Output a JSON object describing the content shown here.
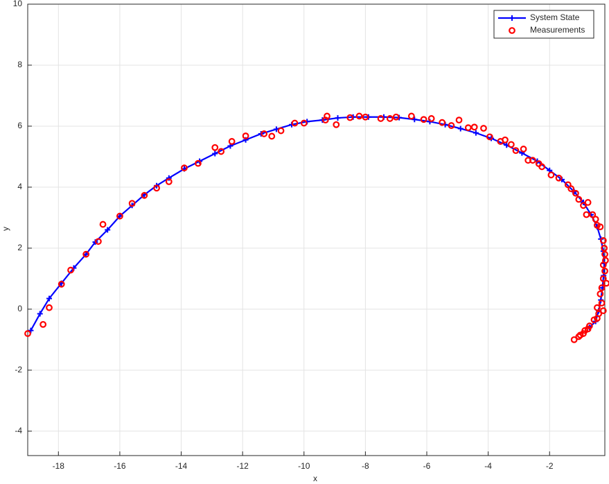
{
  "chart_data": {
    "type": "line",
    "xlabel": "x",
    "ylabel": "y",
    "xlim": [
      -19,
      -0.2
    ],
    "ylim": [
      -4.8,
      10
    ],
    "xticks": [
      -18,
      -16,
      -14,
      -12,
      -10,
      -8,
      -6,
      -4,
      -2
    ],
    "yticks": [
      -4,
      -2,
      0,
      2,
      4,
      6,
      8,
      10
    ],
    "grid": true,
    "legend": "top-right",
    "series": [
      {
        "name": "System State",
        "color": "#0000ff",
        "style": "line-plus",
        "x": [
          -18.9,
          -18.6,
          -18.3,
          -17.9,
          -17.5,
          -17.1,
          -16.8,
          -16.4,
          -16.0,
          -15.6,
          -15.2,
          -14.8,
          -14.4,
          -13.9,
          -13.4,
          -12.9,
          -12.4,
          -11.9,
          -11.4,
          -10.9,
          -10.4,
          -9.9,
          -9.4,
          -8.9,
          -8.4,
          -7.9,
          -7.4,
          -6.9,
          -6.4,
          -5.9,
          -5.4,
          -4.9,
          -4.4,
          -3.9,
          -3.4,
          -2.9,
          -2.4,
          -2.0,
          -1.6,
          -1.2,
          -0.9,
          -0.65,
          -0.45,
          -0.33,
          -0.25,
          -0.22,
          -0.24,
          -0.28,
          -0.33,
          -0.4,
          -0.5,
          -0.7
        ],
        "values": [
          -0.7,
          -0.15,
          0.35,
          0.85,
          1.35,
          1.8,
          2.2,
          2.6,
          3.05,
          3.4,
          3.75,
          4.05,
          4.3,
          4.6,
          4.85,
          5.1,
          5.35,
          5.55,
          5.75,
          5.9,
          6.05,
          6.15,
          6.2,
          6.27,
          6.3,
          6.3,
          6.3,
          6.28,
          6.22,
          6.15,
          6.05,
          5.92,
          5.78,
          5.6,
          5.38,
          5.12,
          4.85,
          4.55,
          4.25,
          3.85,
          3.5,
          3.1,
          2.7,
          2.3,
          1.9,
          1.5,
          1.1,
          0.7,
          0.3,
          -0.05,
          -0.4,
          -0.6
        ]
      },
      {
        "name": "Measurements",
        "color": "#ff0000",
        "style": "circle",
        "x": [
          -19.0,
          -18.5,
          -18.3,
          -17.9,
          -17.6,
          -17.1,
          -16.7,
          -16.55,
          -16.0,
          -15.6,
          -15.2,
          -14.8,
          -14.4,
          -13.9,
          -13.45,
          -12.9,
          -12.7,
          -12.35,
          -11.9,
          -11.3,
          -11.05,
          -10.75,
          -10.3,
          -10.0,
          -9.3,
          -9.25,
          -8.95,
          -8.5,
          -8.2,
          -8.0,
          -7.5,
          -7.2,
          -7.0,
          -6.5,
          -6.1,
          -5.85,
          -5.5,
          -5.2,
          -4.95,
          -4.65,
          -4.45,
          -4.15,
          -3.95,
          -3.6,
          -3.45,
          -3.25,
          -3.1,
          -2.85,
          -2.7,
          -2.55,
          -2.35,
          -2.25,
          -1.95,
          -1.7,
          -1.4,
          -1.3,
          -1.15,
          -1.05,
          -0.9,
          -0.8,
          -0.75,
          -0.6,
          -0.5,
          -0.45,
          -0.35,
          -0.25,
          -0.22,
          -0.2,
          -0.18,
          -0.25,
          -0.2,
          -0.25,
          -0.15,
          -0.3,
          -0.35,
          -0.3,
          -0.45,
          -0.25,
          -0.4,
          -0.45,
          -0.55,
          -0.7,
          -0.75,
          -0.85,
          -0.9,
          -1.0,
          -1.05,
          -1.2
        ],
        "values": [
          -0.8,
          -0.5,
          0.05,
          0.82,
          1.28,
          1.8,
          2.22,
          2.78,
          3.05,
          3.47,
          3.73,
          3.97,
          4.18,
          4.63,
          4.78,
          5.3,
          5.17,
          5.5,
          5.68,
          5.75,
          5.67,
          5.85,
          6.1,
          6.1,
          6.2,
          6.33,
          6.05,
          6.28,
          6.33,
          6.3,
          6.25,
          6.25,
          6.3,
          6.33,
          6.22,
          6.25,
          6.12,
          6.02,
          6.2,
          5.95,
          5.97,
          5.93,
          5.65,
          5.5,
          5.55,
          5.4,
          5.2,
          5.25,
          4.88,
          4.88,
          4.77,
          4.67,
          4.4,
          4.3,
          4.08,
          3.95,
          3.8,
          3.6,
          3.4,
          3.1,
          3.5,
          3.1,
          2.95,
          2.75,
          2.7,
          2.25,
          2.0,
          1.8,
          1.6,
          1.45,
          1.25,
          1.0,
          0.85,
          0.7,
          0.5,
          0.2,
          0.05,
          -0.05,
          -0.15,
          -0.3,
          -0.35,
          -0.55,
          -0.65,
          -0.7,
          -0.8,
          -0.85,
          -0.9,
          -1.0
        ]
      }
    ]
  }
}
